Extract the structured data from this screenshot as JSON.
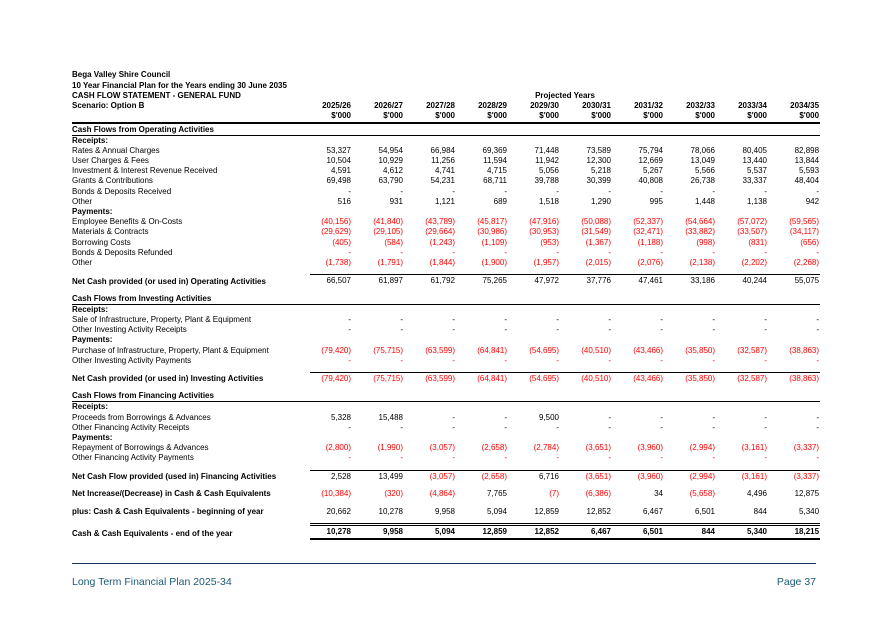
{
  "page": {
    "org": "Bega Valley Shire Council",
    "plan_title": "10 Year Financial Plan for the Years ending 30 June 2035",
    "statement_title": "CASH FLOW STATEMENT - GENERAL FUND",
    "projected_label": "Projected Years",
    "scenario": "Scenario: Option B",
    "unit": "$'000"
  },
  "columns": [
    "2025/26",
    "2026/27",
    "2027/28",
    "2028/29",
    "2029/30",
    "2030/31",
    "2031/32",
    "2032/33",
    "2033/34",
    "2034/35"
  ],
  "rows": [
    {
      "type": "section",
      "label": "Cash Flows from Operating Activities"
    },
    {
      "type": "sub",
      "label": "Receipts:"
    },
    {
      "type": "data",
      "label": "Rates & Annual Charges",
      "values": [
        "53,327",
        "54,954",
        "66,984",
        "69,369",
        "71,448",
        "73,589",
        "75,794",
        "78,066",
        "80,405",
        "82,898"
      ]
    },
    {
      "type": "data",
      "label": "User Charges & Fees",
      "values": [
        "10,504",
        "10,929",
        "11,256",
        "11,594",
        "11,942",
        "12,300",
        "12,669",
        "13,049",
        "13,440",
        "13,844"
      ]
    },
    {
      "type": "data",
      "label": "Investment & Interest Revenue Received",
      "values": [
        "4,591",
        "4,612",
        "4,741",
        "4,715",
        "5,056",
        "5,218",
        "5,267",
        "5,566",
        "5,537",
        "5,593"
      ]
    },
    {
      "type": "data",
      "label": "Grants & Contributions",
      "values": [
        "69,498",
        "63,790",
        "54,231",
        "68,711",
        "39,788",
        "30,399",
        "40,808",
        "26,738",
        "33,337",
        "48,404"
      ]
    },
    {
      "type": "data",
      "label": "Bonds & Deposits Received",
      "values": [
        "-",
        "-",
        "-",
        "-",
        "-",
        "-",
        "-",
        "-",
        "-",
        "-"
      ]
    },
    {
      "type": "data",
      "label": "Other",
      "values": [
        "516",
        "931",
        "1,121",
        "689",
        "1,518",
        "1,290",
        "995",
        "1,448",
        "1,138",
        "942"
      ]
    },
    {
      "type": "sub",
      "label": "Payments:"
    },
    {
      "type": "data",
      "label": "Employee Benefits & On-Costs",
      "values": [
        "(40,156)",
        "(41,840)",
        "(43,789)",
        "(45,817)",
        "(47,916)",
        "(50,088)",
        "(52,337)",
        "(54,664)",
        "(57,072)",
        "(59,565)"
      ]
    },
    {
      "type": "data",
      "label": "Materials & Contracts",
      "values": [
        "(29,629)",
        "(29,105)",
        "(29,664)",
        "(30,986)",
        "(30,953)",
        "(31,549)",
        "(32,471)",
        "(33,882)",
        "(33,507)",
        "(34,117)"
      ]
    },
    {
      "type": "data",
      "label": "Borrowing Costs",
      "values": [
        "(405)",
        "(584)",
        "(1,243)",
        "(1,109)",
        "(953)",
        "(1,367)",
        "(1,188)",
        "(998)",
        "(831)",
        "(656)"
      ]
    },
    {
      "type": "data",
      "label": "Bonds & Deposits Refunded",
      "red_dash": true,
      "values": [
        "-",
        "-",
        "-",
        "-",
        "-",
        "-",
        "-",
        "-",
        "-",
        "-"
      ]
    },
    {
      "type": "data",
      "label": "Other",
      "values": [
        "(1,738)",
        "(1,791)",
        "(1,844)",
        "(1,900)",
        "(1,957)",
        "(2,015)",
        "(2,076)",
        "(2,138)",
        "(2,202)",
        "(2,268)"
      ]
    },
    {
      "type": "gap"
    },
    {
      "type": "net",
      "label": "Net Cash provided (or used in) Operating Activities",
      "values": [
        "66,507",
        "61,897",
        "61,792",
        "75,265",
        "47,972",
        "37,776",
        "47,461",
        "33,186",
        "40,244",
        "55,075"
      ]
    },
    {
      "type": "gap"
    },
    {
      "type": "section",
      "label": "Cash Flows from Investing Activities"
    },
    {
      "type": "sub",
      "label": "Receipts:"
    },
    {
      "type": "data",
      "label": "Sale of Infrastructure, Property, Plant & Equipment",
      "values": [
        "-",
        "-",
        "-",
        "-",
        "-",
        "-",
        "-",
        "-",
        "-",
        "-"
      ]
    },
    {
      "type": "data",
      "label": "Other Investing Activity Receipts",
      "values": [
        "-",
        "-",
        "-",
        "-",
        "-",
        "-",
        "-",
        "-",
        "-",
        "-"
      ]
    },
    {
      "type": "sub",
      "label": "Payments:"
    },
    {
      "type": "data",
      "label": "Purchase of Infrastructure, Property, Plant & Equipment",
      "values": [
        "(79,420)",
        "(75,715)",
        "(63,599)",
        "(64,841)",
        "(54,695)",
        "(40,510)",
        "(43,466)",
        "(35,850)",
        "(32,587)",
        "(38,863)"
      ]
    },
    {
      "type": "data",
      "label": "Other Investing Activity Payments",
      "red_dash": true,
      "values": [
        "-",
        "-",
        "-",
        "-",
        "-",
        "-",
        "-",
        "-",
        "-",
        "-"
      ]
    },
    {
      "type": "gap"
    },
    {
      "type": "net",
      "label": "Net Cash provided (or used in) Investing Activities",
      "values": [
        "(79,420)",
        "(75,715)",
        "(63,599)",
        "(64,841)",
        "(54,695)",
        "(40,510)",
        "(43,466)",
        "(35,850)",
        "(32,587)",
        "(38,863)"
      ]
    },
    {
      "type": "gap"
    },
    {
      "type": "section",
      "label": "Cash Flows from Financing Activities"
    },
    {
      "type": "sub",
      "label": "Receipts:"
    },
    {
      "type": "data",
      "label": "Proceeds from Borrowings & Advances",
      "values": [
        "5,328",
        "15,488",
        "-",
        "-",
        "9,500",
        "-",
        "-",
        "-",
        "-",
        "-"
      ]
    },
    {
      "type": "data",
      "label": "Other Financing Activity Receipts",
      "values": [
        "-",
        "-",
        "-",
        "-",
        "-",
        "-",
        "-",
        "-",
        "-",
        "-"
      ]
    },
    {
      "type": "sub",
      "label": "Payments:"
    },
    {
      "type": "data",
      "label": "Repayment of Borrowings & Advances",
      "values": [
        "(2,800)",
        "(1,990)",
        "(3,057)",
        "(2,658)",
        "(2,784)",
        "(3,651)",
        "(3,960)",
        "(2,994)",
        "(3,161)",
        "(3,337)"
      ]
    },
    {
      "type": "data",
      "label": "Other Financing Activity Payments",
      "red_dash": true,
      "values": [
        "-",
        "-",
        "-",
        "-",
        "-",
        "-",
        "-",
        "-",
        "-",
        "-"
      ]
    },
    {
      "type": "gap"
    },
    {
      "type": "net",
      "label": "Net Cash Flow provided (used in) Financing Activities",
      "values": [
        "2,528",
        "13,499",
        "(3,057)",
        "(2,658)",
        "6,716",
        "(3,651)",
        "(3,960)",
        "(2,994)",
        "(3,161)",
        "(3,337)"
      ]
    },
    {
      "type": "gap"
    },
    {
      "type": "boldrow",
      "label": "Net Increase/(Decrease) in Cash & Cash Equivalents",
      "values": [
        "(10,384)",
        "(320)",
        "(4,864)",
        "7,765",
        "(7)",
        "(6,386)",
        "34",
        "(5,658)",
        "4,496",
        "12,875"
      ]
    },
    {
      "type": "gap"
    },
    {
      "type": "boldrow",
      "label": "plus: Cash & Cash Equivalents - beginning of year",
      "values": [
        "20,662",
        "10,278",
        "9,958",
        "5,094",
        "12,859",
        "12,852",
        "6,467",
        "6,501",
        "844",
        "5,340"
      ]
    },
    {
      "type": "gap"
    },
    {
      "type": "total",
      "label": "Cash & Cash Equivalents - end of the year",
      "values": [
        "10,278",
        "9,958",
        "5,094",
        "12,859",
        "12,852",
        "6,467",
        "6,501",
        "844",
        "5,340",
        "18,215"
      ]
    }
  ],
  "footer": {
    "left": "Long Term Financial Plan 2025-34",
    "right": "Page 37"
  },
  "colors": {
    "negative": "#FF0000",
    "footer_text": "#1C5A74",
    "footer_line": "#17365D"
  }
}
